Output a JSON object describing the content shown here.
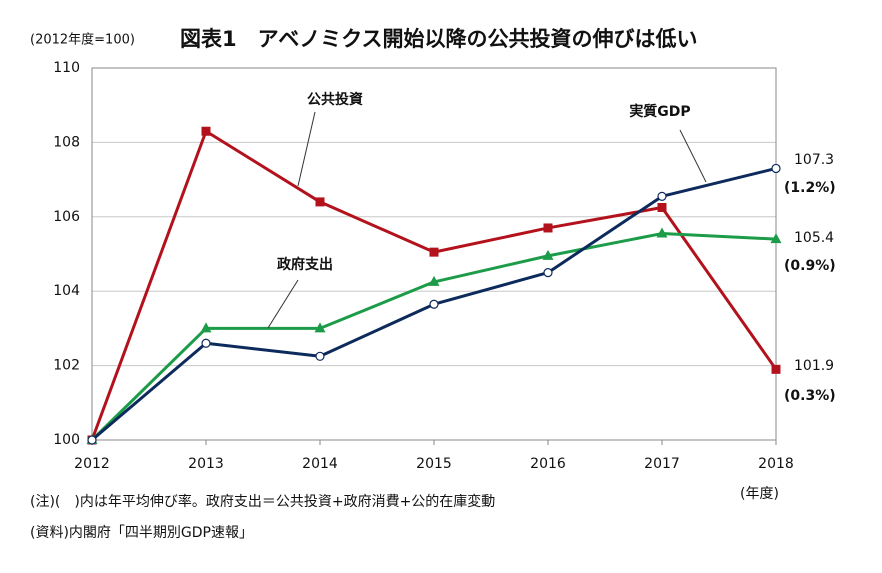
{
  "chart_data": {
    "type": "line",
    "title": "図表1　アベノミクス開始以降の公共投資の伸びは低い",
    "subtitle": "(2012年度=100)",
    "x": [
      2012,
      2013,
      2014,
      2015,
      2016,
      2017,
      2018
    ],
    "xlim": [
      2012,
      2018
    ],
    "xticks": [
      2012,
      2013,
      2014,
      2015,
      2016,
      2017,
      2018
    ],
    "x_label": "(年度)",
    "ylim": [
      100,
      110
    ],
    "yticks": [
      100,
      102,
      104,
      106,
      108,
      110
    ],
    "grid": true,
    "series": [
      {
        "name": "公共投資",
        "color": "#b3121c",
        "marker": "square",
        "values": [
          100,
          108.3,
          106.4,
          105.05,
          105.7,
          106.25,
          101.9
        ],
        "growth_label": "(0.3%)"
      },
      {
        "name": "政府支出",
        "color": "#1c9c48",
        "marker": "triangle",
        "values": [
          100,
          103.0,
          103.0,
          104.25,
          104.95,
          105.55,
          105.4
        ],
        "growth_label": "(0.9%)"
      },
      {
        "name": "実質GDP",
        "color": "#0d2a5c",
        "marker": "circle",
        "values": [
          100,
          102.6,
          102.25,
          103.65,
          104.5,
          106.55,
          107.3
        ],
        "growth_label": "(1.2%)"
      }
    ],
    "notes": [
      "(注)(　)内は年平均伸び率。政府支出＝公共投資+政府消費+公的在庫変動",
      "(資料)内閣府「四半期別GDP速報」"
    ]
  }
}
